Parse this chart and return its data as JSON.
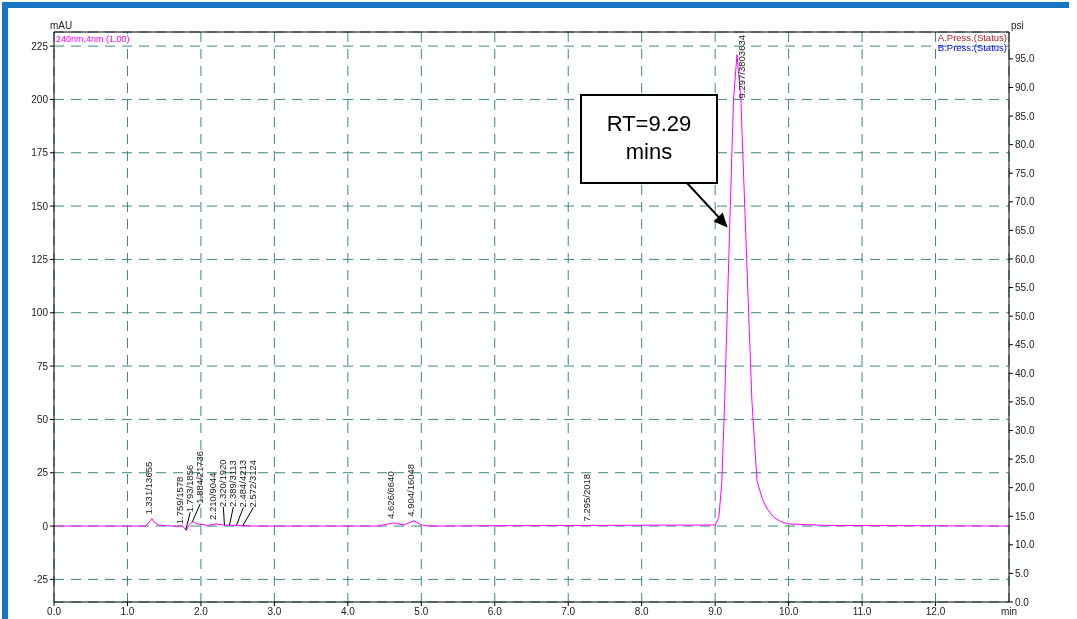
{
  "chart_data": {
    "type": "line",
    "xlabel": "min",
    "ylabel": "mAU",
    "y2label": "psi",
    "x": [
      0,
      1.0,
      1.25,
      1.31,
      1.331,
      1.36,
      1.42,
      1.6,
      1.75,
      1.8,
      1.84,
      1.884,
      1.95,
      2.1,
      2.21,
      2.3,
      2.5,
      2.7,
      3.5,
      4.4,
      4.626,
      4.76,
      4.904,
      5.0,
      5.1,
      7.295,
      9.0,
      9.05,
      9.09,
      9.13,
      9.2,
      9.25,
      9.297,
      9.35,
      9.41,
      9.5,
      9.57,
      9.65,
      9.71,
      9.8,
      9.9,
      10.0,
      10.5,
      13.0
    ],
    "series": [
      {
        "name": "240nm,4nm (1.00)",
        "color": "#ff00ff",
        "values": [
          0,
          0,
          0,
          2.5,
          3.5,
          2,
          0.5,
          0,
          0,
          -2,
          0.5,
          2,
          1,
          0.3,
          1,
          0.5,
          0.3,
          0,
          0,
          0,
          1.5,
          0.5,
          2.5,
          0.5,
          0,
          0.3,
          0.5,
          4,
          20,
          59,
          143,
          200,
          221,
          200,
          143,
          59,
          21,
          12,
          8,
          4,
          2,
          1,
          0.3,
          0
        ]
      },
      {
        "name": "A.Press.(Status)",
        "color": "#b22222",
        "axis": "y2",
        "values": [
          null,
          null,
          null,
          null,
          null,
          null,
          null,
          null,
          null,
          null,
          null,
          null,
          null,
          null,
          null,
          null,
          null,
          null,
          null,
          null,
          null,
          null,
          null,
          null,
          null,
          null,
          null,
          null,
          null,
          null,
          null,
          null,
          null,
          null,
          null,
          null,
          null,
          null,
          null,
          null,
          null,
          null,
          null,
          null
        ]
      },
      {
        "name": "B.Press.(Status)",
        "color": "#0000ff",
        "axis": "y2",
        "values": [
          null,
          null,
          null,
          null,
          null,
          null,
          null,
          null,
          null,
          null,
          null,
          null,
          null,
          null,
          null,
          null,
          null,
          null,
          null,
          null,
          null,
          null,
          null,
          null,
          null,
          null,
          null,
          null,
          null,
          null,
          null,
          null,
          null,
          null,
          null,
          null,
          null,
          null,
          null,
          null,
          null,
          null,
          null,
          null
        ]
      }
    ],
    "xlim": [
      0,
      13
    ],
    "xticks": [
      {
        "value": 0,
        "label": "0.0"
      },
      {
        "value": 1,
        "label": "1.0"
      },
      {
        "value": 2,
        "label": "2.0"
      },
      {
        "value": 3,
        "label": "3.0"
      },
      {
        "value": 4,
        "label": "4.0"
      },
      {
        "value": 5,
        "label": "5.0"
      },
      {
        "value": 6,
        "label": "6.0"
      },
      {
        "value": 7,
        "label": "7.0"
      },
      {
        "value": 8,
        "label": "8.0"
      },
      {
        "value": 9,
        "label": "9.0"
      },
      {
        "value": 10,
        "label": "10.0"
      },
      {
        "value": 11,
        "label": "11.0"
      },
      {
        "value": 12,
        "label": "12.0"
      }
    ],
    "ylim": [
      -35.6,
      231.6
    ],
    "yticks": [
      -25,
      0,
      25,
      50,
      75,
      100,
      125,
      150,
      175,
      200,
      225
    ],
    "y2lim": [
      0,
      99.7
    ],
    "y2ticks": [
      {
        "value": 0,
        "label": "0.0"
      },
      {
        "value": 5,
        "label": "5.0"
      },
      {
        "value": 10,
        "label": "10.0"
      },
      {
        "value": 15,
        "label": "15.0"
      },
      {
        "value": 20,
        "label": "20.0"
      },
      {
        "value": 25,
        "label": "25.0"
      },
      {
        "value": 30,
        "label": "30.0"
      },
      {
        "value": 35,
        "label": "35.0"
      },
      {
        "value": 40,
        "label": "40.0"
      },
      {
        "value": 45,
        "label": "45.0"
      },
      {
        "value": 50,
        "label": "50.0"
      },
      {
        "value": 55,
        "label": "55.0"
      },
      {
        "value": 60,
        "label": "60.0"
      },
      {
        "value": 65,
        "label": "65.0"
      },
      {
        "value": 70,
        "label": "70.0"
      },
      {
        "value": 75,
        "label": "75.0"
      },
      {
        "value": 80,
        "label": "80.0"
      },
      {
        "value": 85,
        "label": "85.0"
      },
      {
        "value": 90,
        "label": "90.0"
      },
      {
        "value": 95,
        "label": "95.0"
      }
    ],
    "grid": true,
    "legend": "top",
    "marker": "none",
    "line_style": "solid",
    "annotations": [
      {
        "text": "1.331/13655",
        "x": 1.331,
        "y": 3.5
      },
      {
        "text": "1.759/1578",
        "x": 1.759,
        "y": -1
      },
      {
        "text": "1.793/1856",
        "x": 1.793,
        "y": -2
      },
      {
        "text": "1.884/21736",
        "x": 1.884,
        "y": 2
      },
      {
        "text": "2.210/9044",
        "x": 2.21,
        "y": 1
      },
      {
        "text": "2.320/1920",
        "x": 2.32,
        "y": 0.5
      },
      {
        "text": "2.389/3113",
        "x": 2.389,
        "y": 0.5
      },
      {
        "text": "2.484/4213",
        "x": 2.484,
        "y": 0.3
      },
      {
        "text": "2.572/3124",
        "x": 2.572,
        "y": 0.3
      },
      {
        "text": "4.626/6640",
        "x": 4.626,
        "y": 1.5
      },
      {
        "text": "4.904/16048",
        "x": 4.904,
        "y": 2.5
      },
      {
        "text": "7.295/2018",
        "x": 7.295,
        "y": 0.3
      },
      {
        "text": "9.297/3803634",
        "x": 9.297,
        "y": 221
      },
      "RT=9.29 mins"
    ]
  }
}
